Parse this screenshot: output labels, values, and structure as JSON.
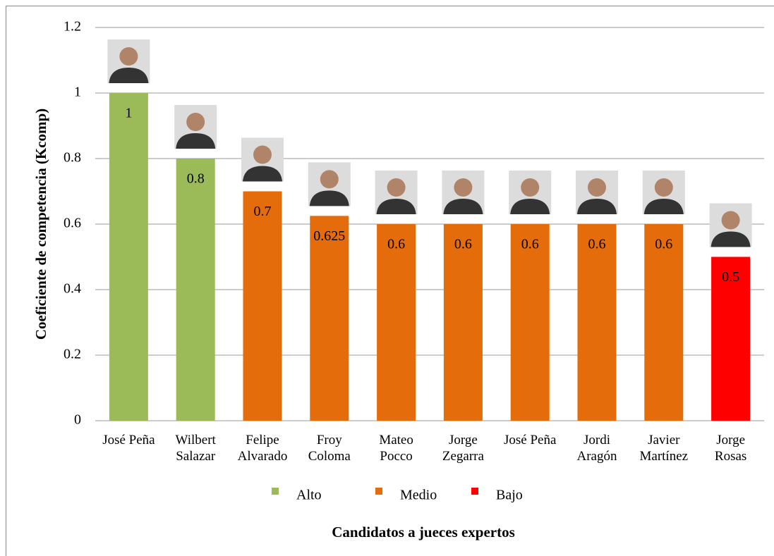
{
  "chart_data": {
    "type": "bar",
    "y_label": "Coeficiente de competencia (Kcomp)",
    "x_label": "Candidatos a jueces expertos",
    "categories": [
      "José Peña",
      "Wilbert\nSalazar",
      "Felipe\nAlvarado",
      "Froy\nColoma",
      "Mateo\nPocco",
      "Jorge\nZegarra",
      "José Peña",
      "Jordi\nAragón",
      "Javier\nMartínez",
      "Jorge\nRosas"
    ],
    "series": [
      {
        "name": "Alto",
        "color": "#9bbb59",
        "values": [
          1,
          0.8,
          null,
          null,
          null,
          null,
          null,
          null,
          null,
          null
        ]
      },
      {
        "name": "Medio",
        "color": "#e46c0a",
        "values": [
          null,
          null,
          0.7,
          0.625,
          0.6,
          0.6,
          0.6,
          0.6,
          0.6,
          null
        ]
      },
      {
        "name": "Bajo",
        "color": "#ff0000",
        "values": [
          null,
          null,
          null,
          null,
          null,
          null,
          null,
          null,
          null,
          0.5
        ]
      }
    ],
    "ylim": [
      0,
      1.2
    ],
    "yticks": [
      0,
      0.2,
      0.4,
      0.6,
      0.8,
      1,
      1.2
    ],
    "grid": true
  }
}
